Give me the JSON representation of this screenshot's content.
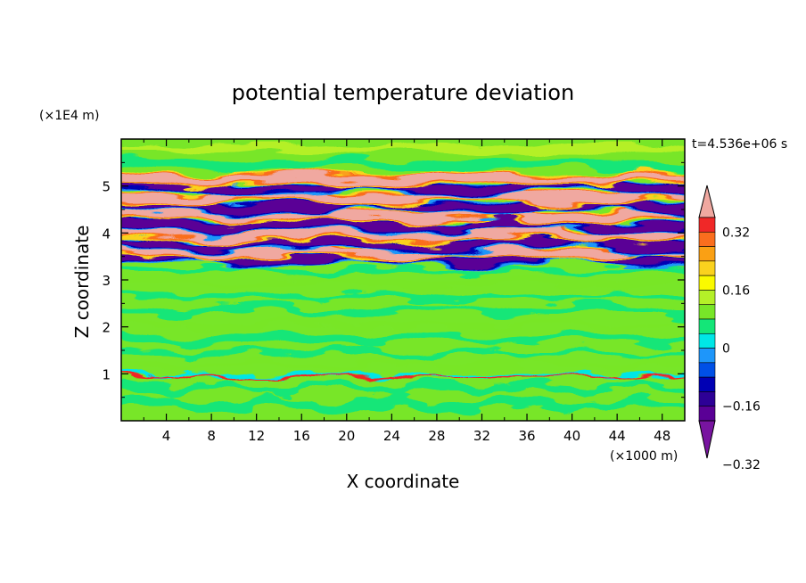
{
  "chart_data": {
    "type": "heatmap",
    "title": "potential temperature deviation",
    "xlabel": "X coordinate",
    "ylabel": "Z coordinate",
    "x_unit": "(×1000 m)",
    "y_unit": "(×1E4 m)",
    "time_label": "t=4.536e+06 s",
    "xlim": [
      0,
      50
    ],
    "ylim": [
      0,
      6
    ],
    "x_ticks": [
      4,
      8,
      12,
      16,
      20,
      24,
      28,
      32,
      36,
      40,
      44,
      48
    ],
    "y_ticks": [
      1,
      2,
      3,
      4,
      5
    ],
    "colorbar": {
      "ticks": [
        0.32,
        0.16,
        0,
        -0.16,
        -0.32
      ],
      "tick_labels": [
        "0.32",
        "0.16",
        "0",
        "−0.16",
        "−0.32"
      ],
      "level_step": 0.04,
      "levels_description": "filled contour levels from below -0.36 (purple) to above 0.36 (pink)",
      "colors_top_to_bottom": [
        "#f0a8a0",
        "#f02828",
        "#fa6e1e",
        "#faa014",
        "#fad21e",
        "#fafa00",
        "#b4f028",
        "#78e628",
        "#14e678",
        "#00e6e6",
        "#1e96fa",
        "#0050e6",
        "#0000b4",
        "#2d0096",
        "#5a0096",
        "#7814a0"
      ]
    },
    "structure": [
      {
        "z_range": [
          0,
          0.9
        ],
        "description": "green/teal cells near 0"
      },
      {
        "z_range": [
          0.9,
          1.0
        ],
        "description": "thin band of small +/- values"
      },
      {
        "z_range": [
          1.0,
          3.3
        ],
        "description": "weak layered green anomalies"
      },
      {
        "z_range": [
          3.3,
          5.3
        ],
        "description": "strong alternating +/-0.36 layers"
      },
      {
        "z_range": [
          5.3,
          6.0
        ],
        "description": "weak green anomalies"
      }
    ]
  }
}
